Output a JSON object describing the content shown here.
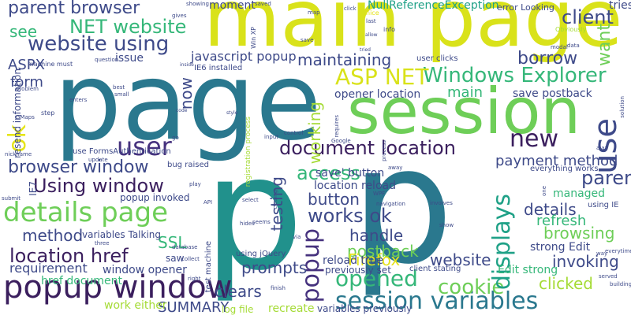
{
  "palette": {
    "navy": "#3b1f5e",
    "purple": "#46327e",
    "indigo": "#3e4a89",
    "blue": "#365c8d",
    "steel": "#2a788e",
    "teal": "#21918c",
    "sea": "#1fa187",
    "emerald": "#35b779",
    "green": "#6ece58",
    "lime": "#a5db36",
    "yellow": "#d9e21a",
    "gold": "#e5e419",
    "background": "#ffffff"
  },
  "words": [
    {
      "text": "page",
      "color": "steel"
    },
    {
      "text": "p",
      "color": "teal"
    },
    {
      "text": "p",
      "color": "steel"
    },
    {
      "text": "main page",
      "color": "yellow"
    },
    {
      "text": "session",
      "color": "green"
    },
    {
      "text": "popup window",
      "color": "navy"
    },
    {
      "text": "session variables",
      "color": "steel"
    },
    {
      "text": "details page",
      "color": "green"
    },
    {
      "text": "parent browser",
      "color": "indigo"
    },
    {
      "text": "website using",
      "color": "indigo"
    },
    {
      "text": "NET website",
      "color": "emerald"
    },
    {
      "text": "Windows Explorer",
      "color": "emerald"
    },
    {
      "text": "ASP NET",
      "color": "yellow"
    },
    {
      "text": "document location",
      "color": "navy"
    },
    {
      "text": "browser window",
      "color": "indigo"
    },
    {
      "text": "Using window",
      "color": "navy"
    },
    {
      "text": "location href",
      "color": "navy"
    },
    {
      "text": "user",
      "color": "purple"
    },
    {
      "text": "new",
      "color": "navy"
    },
    {
      "text": "use",
      "color": "indigo"
    },
    {
      "text": "ok",
      "color": "gold"
    },
    {
      "text": "popup",
      "color": "purple"
    },
    {
      "text": "cookie",
      "color": "green"
    },
    {
      "text": "opened",
      "color": "emerald"
    },
    {
      "text": "displays",
      "color": "sea"
    },
    {
      "text": "works ok",
      "color": "indigo"
    },
    {
      "text": "client",
      "color": "indigo"
    },
    {
      "text": "parent",
      "color": "indigo"
    },
    {
      "text": "maintaining",
      "color": "indigo"
    },
    {
      "text": "borrow",
      "color": "indigo"
    },
    {
      "text": "want",
      "color": "green"
    },
    {
      "text": "tries",
      "color": "indigo"
    },
    {
      "text": "see",
      "color": "emerald"
    },
    {
      "text": "ASPX",
      "color": "indigo"
    },
    {
      "text": "form",
      "color": "indigo"
    },
    {
      "text": "method",
      "color": "indigo"
    },
    {
      "text": "access",
      "color": "emerald"
    },
    {
      "text": "working",
      "color": "lime"
    },
    {
      "text": "payment method",
      "color": "indigo"
    },
    {
      "text": "details",
      "color": "indigo"
    },
    {
      "text": "refresh",
      "color": "emerald"
    },
    {
      "text": "browsing",
      "color": "green"
    },
    {
      "text": "invoking",
      "color": "indigo"
    },
    {
      "text": "clicked",
      "color": "lime"
    },
    {
      "text": "prompts",
      "color": "indigo"
    },
    {
      "text": "postback",
      "color": "green"
    },
    {
      "text": "handle",
      "color": "indigo"
    },
    {
      "text": "website",
      "color": "indigo"
    },
    {
      "text": "clears",
      "color": "indigo"
    },
    {
      "text": "Firefox",
      "color": "gold"
    },
    {
      "text": "button",
      "color": "indigo"
    },
    {
      "text": "testing",
      "color": "indigo"
    },
    {
      "text": "SSL",
      "color": "emerald"
    },
    {
      "text": "requirement",
      "color": "indigo"
    },
    {
      "text": "now",
      "color": "indigo"
    },
    {
      "text": "main",
      "color": "emerald"
    },
    {
      "text": "javascript popup",
      "color": "indigo"
    },
    {
      "text": "NullReferenceException",
      "color": "sea"
    },
    {
      "text": "moment",
      "color": "indigo"
    },
    {
      "text": "save postback",
      "color": "indigo"
    },
    {
      "text": "opener location",
      "color": "indigo"
    },
    {
      "text": "location reload",
      "color": "indigo"
    },
    {
      "text": "save' button",
      "color": "indigo"
    },
    {
      "text": "reload true",
      "color": "indigo"
    },
    {
      "text": "strong Edit",
      "color": "indigo"
    },
    {
      "text": "Edit strong",
      "color": "emerald"
    },
    {
      "text": "managed",
      "color": "emerald"
    },
    {
      "text": "window opener",
      "color": "indigo"
    },
    {
      "text": "href document",
      "color": "emerald"
    },
    {
      "text": "SUMMARY",
      "color": "indigo"
    },
    {
      "text": "work either",
      "color": "lime"
    },
    {
      "text": "recreate",
      "color": "lime"
    },
    {
      "text": "log file",
      "color": "lime"
    },
    {
      "text": "variables Talking",
      "color": "indigo"
    },
    {
      "text": "popup invoked",
      "color": "indigo"
    },
    {
      "text": "saw",
      "color": "indigo"
    },
    {
      "text": "variables previously",
      "color": "indigo"
    },
    {
      "text": "previously set",
      "color": "indigo"
    },
    {
      "text": "client stating",
      "color": "indigo"
    },
    {
      "text": "using jQuery",
      "color": "indigo"
    },
    {
      "text": "issue",
      "color": "indigo"
    },
    {
      "text": "information",
      "color": "indigo"
    },
    {
      "text": "resend",
      "color": "indigo"
    },
    {
      "text": "user clicks",
      "color": "indigo"
    },
    {
      "text": "IE6 installed",
      "color": "indigo"
    },
    {
      "text": "error Looking",
      "color": "indigo"
    },
    {
      "text": "use FormsAuthentication",
      "color": "indigo"
    },
    {
      "text": "bug raised",
      "color": "indigo"
    },
    {
      "text": "everything works",
      "color": "indigo"
    },
    {
      "text": "using IE",
      "color": "indigo"
    },
    {
      "text": "IE7",
      "color": "indigo"
    },
    {
      "text": "test machine",
      "color": "indigo"
    },
    {
      "text": "registration process",
      "color": "lime"
    },
    {
      "text": "machine must",
      "color": "indigo"
    },
    {
      "text": "enters",
      "color": "indigo"
    },
    {
      "text": "step",
      "color": "indigo"
    },
    {
      "text": "GMaps",
      "color": "indigo"
    },
    {
      "text": "nickname",
      "color": "indigo"
    },
    {
      "text": "showing",
      "color": "indigo"
    },
    {
      "text": "gives",
      "color": "indigo"
    },
    {
      "text": "saved",
      "color": "indigo"
    },
    {
      "text": "question",
      "color": "indigo"
    },
    {
      "text": "nice",
      "color": "gold"
    },
    {
      "text": "last",
      "color": "indigo"
    },
    {
      "text": "info",
      "color": "indigo"
    },
    {
      "text": "Obviously",
      "color": "lime"
    },
    {
      "text": "modal",
      "color": "indigo"
    },
    {
      "text": "data",
      "color": "indigo"
    },
    {
      "text": "click",
      "color": "indigo"
    },
    {
      "text": "allow",
      "color": "indigo"
    },
    {
      "text": "tried",
      "color": "indigo"
    },
    {
      "text": "Win XP",
      "color": "indigo"
    },
    {
      "text": "Google",
      "color": "indigo"
    },
    {
      "text": "requires",
      "color": "indigo"
    },
    {
      "text": "control",
      "color": "indigo"
    },
    {
      "text": "input",
      "color": "indigo"
    },
    {
      "text": "API",
      "color": "indigo"
    },
    {
      "text": "play",
      "color": "indigo"
    },
    {
      "text": "submit",
      "color": "indigo"
    },
    {
      "text": "database",
      "color": "indigo"
    },
    {
      "text": "collect",
      "color": "indigo"
    },
    {
      "text": "finish",
      "color": "indigo"
    },
    {
      "text": "WPF",
      "color": "indigo"
    },
    {
      "text": "involves",
      "color": "indigo"
    },
    {
      "text": "show",
      "color": "indigo"
    },
    {
      "text": "one",
      "color": "indigo"
    },
    {
      "text": "ajax",
      "color": "indigo"
    },
    {
      "text": "solution",
      "color": "indigo"
    },
    {
      "text": "served",
      "color": "indigo"
    },
    {
      "text": "building",
      "color": "indigo"
    },
    {
      "text": "way",
      "color": "indigo"
    },
    {
      "text": "select",
      "color": "indigo"
    },
    {
      "text": "via",
      "color": "indigo"
    },
    {
      "text": "hides",
      "color": "indigo"
    },
    {
      "text": "seems",
      "color": "indigo"
    },
    {
      "text": "closing",
      "color": "indigo"
    },
    {
      "text": "three",
      "color": "indigo"
    },
    {
      "text": "right",
      "color": "indigo"
    },
    {
      "text": "small",
      "color": "indigo"
    },
    {
      "text": "best",
      "color": "indigo"
    },
    {
      "text": "code",
      "color": "indigo"
    },
    {
      "text": "style",
      "color": "indigo"
    },
    {
      "text": "inside",
      "color": "indigo"
    },
    {
      "text": "update",
      "color": "indigo"
    },
    {
      "text": "map",
      "color": "indigo"
    },
    {
      "text": "save",
      "color": "indigo"
    },
    {
      "text": "go",
      "color": "indigo"
    },
    {
      "text": "problem",
      "color": "indigo"
    },
    {
      "text": "process",
      "color": "indigo"
    },
    {
      "text": "navigation",
      "color": "indigo"
    },
    {
      "text": "everytime",
      "color": "indigo"
    },
    {
      "text": "away",
      "color": "indigo"
    }
  ]
}
